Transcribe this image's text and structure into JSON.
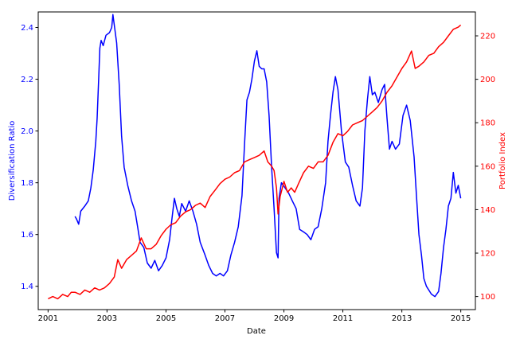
{
  "chart_data": {
    "type": "line",
    "xlabel": "Date",
    "ylabel_left": "Diversification Ratio",
    "ylabel_right": "Portfolio Index",
    "x_range": [
      "2000-09-01",
      "2015-07-01"
    ],
    "x_ticks": [
      "2001",
      "2003",
      "2005",
      "2007",
      "2009",
      "2011",
      "2013",
      "2015"
    ],
    "y_left_range": [
      1.31,
      2.46
    ],
    "y_left_ticks": [
      "1.4",
      "1.6",
      "1.8",
      "2.0",
      "2.2",
      "2.4"
    ],
    "y_right_range": [
      94,
      231
    ],
    "y_right_ticks": [
      "100",
      "120",
      "140",
      "160",
      "180",
      "200",
      "220"
    ],
    "series": [
      {
        "axis": "left",
        "color": "#0000ff",
        "points": [
          [
            "2001-12-01",
            1.67
          ],
          [
            "2001-12-20",
            1.66
          ],
          [
            "2002-01-15",
            1.64
          ],
          [
            "2002-02-10",
            1.69
          ],
          [
            "2002-04-01",
            1.71
          ],
          [
            "2002-05-15",
            1.73
          ],
          [
            "2002-06-15",
            1.78
          ],
          [
            "2002-07-15",
            1.85
          ],
          [
            "2002-08-15",
            1.96
          ],
          [
            "2002-09-01",
            2.05
          ],
          [
            "2002-09-20",
            2.2
          ],
          [
            "2002-10-05",
            2.32
          ],
          [
            "2002-10-20",
            2.35
          ],
          [
            "2002-11-15",
            2.33
          ],
          [
            "2002-12-20",
            2.37
          ],
          [
            "2003-02-01",
            2.38
          ],
          [
            "2003-03-01",
            2.4
          ],
          [
            "2003-03-15",
            2.45
          ],
          [
            "2003-04-01",
            2.41
          ],
          [
            "2003-05-01",
            2.34
          ],
          [
            "2003-06-01",
            2.18
          ],
          [
            "2003-07-01",
            1.98
          ],
          [
            "2003-08-01",
            1.86
          ],
          [
            "2003-09-15",
            1.79
          ],
          [
            "2003-11-01",
            1.73
          ],
          [
            "2003-12-15",
            1.69
          ],
          [
            "2004-01-15",
            1.63
          ],
          [
            "2004-02-15",
            1.57
          ],
          [
            "2004-04-01",
            1.55
          ],
          [
            "2004-05-15",
            1.49
          ],
          [
            "2004-07-01",
            1.47
          ],
          [
            "2004-08-15",
            1.5
          ],
          [
            "2004-10-01",
            1.46
          ],
          [
            "2004-11-15",
            1.48
          ],
          [
            "2005-01-01",
            1.51
          ],
          [
            "2005-02-15",
            1.58
          ],
          [
            "2005-03-15",
            1.66
          ],
          [
            "2005-04-15",
            1.74
          ],
          [
            "2005-05-15",
            1.7
          ],
          [
            "2005-06-15",
            1.67
          ],
          [
            "2005-07-15",
            1.72
          ],
          [
            "2005-09-01",
            1.69
          ],
          [
            "2005-10-15",
            1.73
          ],
          [
            "2005-12-01",
            1.69
          ],
          [
            "2006-01-15",
            1.64
          ],
          [
            "2006-03-01",
            1.57
          ],
          [
            "2006-05-01",
            1.52
          ],
          [
            "2006-06-15",
            1.48
          ],
          [
            "2006-08-01",
            1.45
          ],
          [
            "2006-09-15",
            1.44
          ],
          [
            "2006-11-01",
            1.45
          ],
          [
            "2006-12-15",
            1.44
          ],
          [
            "2007-02-01",
            1.46
          ],
          [
            "2007-03-15",
            1.52
          ],
          [
            "2007-05-01",
            1.57
          ],
          [
            "2007-06-15",
            1.63
          ],
          [
            "2007-08-01",
            1.75
          ],
          [
            "2007-09-01",
            1.95
          ],
          [
            "2007-10-01",
            2.12
          ],
          [
            "2007-11-01",
            2.15
          ],
          [
            "2007-12-01",
            2.2
          ],
          [
            "2008-01-01",
            2.27
          ],
          [
            "2008-02-01",
            2.31
          ],
          [
            "2008-03-01",
            2.25
          ],
          [
            "2008-04-01",
            2.24
          ],
          [
            "2008-05-01",
            2.24
          ],
          [
            "2008-06-01",
            2.19
          ],
          [
            "2008-07-01",
            2.06
          ],
          [
            "2008-08-01",
            1.86
          ],
          [
            "2008-09-01",
            1.7
          ],
          [
            "2008-10-01",
            1.53
          ],
          [
            "2008-10-20",
            1.51
          ],
          [
            "2008-11-01",
            1.74
          ],
          [
            "2008-12-01",
            1.8
          ],
          [
            "2009-01-15",
            1.78
          ],
          [
            "2009-03-01",
            1.76
          ],
          [
            "2009-04-15",
            1.73
          ],
          [
            "2009-06-01",
            1.7
          ],
          [
            "2009-07-15",
            1.62
          ],
          [
            "2009-09-01",
            1.61
          ],
          [
            "2009-10-15",
            1.6
          ],
          [
            "2009-12-01",
            1.58
          ],
          [
            "2010-01-15",
            1.62
          ],
          [
            "2010-03-01",
            1.63
          ],
          [
            "2010-04-15",
            1.7
          ],
          [
            "2010-06-01",
            1.8
          ],
          [
            "2010-07-01",
            1.96
          ],
          [
            "2010-08-01",
            2.06
          ],
          [
            "2010-09-01",
            2.15
          ],
          [
            "2010-10-01",
            2.21
          ],
          [
            "2010-11-01",
            2.16
          ],
          [
            "2010-12-15",
            2.0
          ],
          [
            "2011-02-01",
            1.88
          ],
          [
            "2011-03-15",
            1.86
          ],
          [
            "2011-05-01",
            1.79
          ],
          [
            "2011-06-15",
            1.73
          ],
          [
            "2011-08-01",
            1.71
          ],
          [
            "2011-09-01",
            1.78
          ],
          [
            "2011-10-01",
            2.0
          ],
          [
            "2011-11-01",
            2.12
          ],
          [
            "2011-12-01",
            2.21
          ],
          [
            "2012-01-01",
            2.14
          ],
          [
            "2012-02-01",
            2.15
          ],
          [
            "2012-03-15",
            2.11
          ],
          [
            "2012-05-01",
            2.16
          ],
          [
            "2012-06-01",
            2.18
          ],
          [
            "2012-07-01",
            2.05
          ],
          [
            "2012-08-01",
            1.93
          ],
          [
            "2012-09-01",
            1.96
          ],
          [
            "2012-10-15",
            1.93
          ],
          [
            "2012-12-01",
            1.95
          ],
          [
            "2013-01-15",
            2.06
          ],
          [
            "2013-03-01",
            2.1
          ],
          [
            "2013-04-15",
            2.04
          ],
          [
            "2013-06-01",
            1.9
          ],
          [
            "2013-07-01",
            1.75
          ],
          [
            "2013-08-01",
            1.6
          ],
          [
            "2013-09-01",
            1.52
          ],
          [
            "2013-10-01",
            1.43
          ],
          [
            "2013-11-01",
            1.4
          ],
          [
            "2014-01-01",
            1.37
          ],
          [
            "2014-02-15",
            1.36
          ],
          [
            "2014-04-01",
            1.38
          ],
          [
            "2014-05-01",
            1.45
          ],
          [
            "2014-06-01",
            1.55
          ],
          [
            "2014-07-01",
            1.62
          ],
          [
            "2014-08-01",
            1.71
          ],
          [
            "2014-09-01",
            1.74
          ],
          [
            "2014-10-01",
            1.84
          ],
          [
            "2014-11-01",
            1.76
          ],
          [
            "2014-12-01",
            1.79
          ],
          [
            "2014-12-31",
            1.74
          ]
        ]
      },
      {
        "axis": "right",
        "color": "#ff0000",
        "points": [
          [
            "2001-01-01",
            99
          ],
          [
            "2001-03-01",
            100
          ],
          [
            "2001-05-01",
            99
          ],
          [
            "2001-07-01",
            101
          ],
          [
            "2001-09-01",
            100
          ],
          [
            "2001-10-15",
            102
          ],
          [
            "2001-12-01",
            102
          ],
          [
            "2002-02-01",
            101
          ],
          [
            "2002-04-01",
            103
          ],
          [
            "2002-06-01",
            102
          ],
          [
            "2002-08-01",
            104
          ],
          [
            "2002-10-01",
            103
          ],
          [
            "2002-12-01",
            104
          ],
          [
            "2003-02-01",
            106
          ],
          [
            "2003-04-01",
            109
          ],
          [
            "2003-05-15",
            117
          ],
          [
            "2003-07-01",
            113
          ],
          [
            "2003-09-01",
            117
          ],
          [
            "2003-11-01",
            119
          ],
          [
            "2004-01-01",
            121
          ],
          [
            "2004-03-01",
            127
          ],
          [
            "2004-05-01",
            122
          ],
          [
            "2004-07-01",
            122
          ],
          [
            "2004-09-01",
            124
          ],
          [
            "2004-11-01",
            128
          ],
          [
            "2005-01-01",
            131
          ],
          [
            "2005-03-01",
            133
          ],
          [
            "2005-05-01",
            134
          ],
          [
            "2005-07-01",
            137
          ],
          [
            "2005-09-01",
            139
          ],
          [
            "2005-11-01",
            140
          ],
          [
            "2006-01-01",
            142
          ],
          [
            "2006-03-01",
            143
          ],
          [
            "2006-05-01",
            141
          ],
          [
            "2006-07-01",
            146
          ],
          [
            "2006-09-01",
            149
          ],
          [
            "2006-11-01",
            152
          ],
          [
            "2007-01-01",
            154
          ],
          [
            "2007-03-01",
            155
          ],
          [
            "2007-05-01",
            157
          ],
          [
            "2007-07-01",
            158
          ],
          [
            "2007-09-01",
            162
          ],
          [
            "2007-11-01",
            163
          ],
          [
            "2008-01-01",
            164
          ],
          [
            "2008-03-01",
            165
          ],
          [
            "2008-05-01",
            167
          ],
          [
            "2008-06-15",
            162
          ],
          [
            "2008-08-01",
            160
          ],
          [
            "2008-09-01",
            158
          ],
          [
            "2008-10-01",
            150
          ],
          [
            "2008-10-20",
            138
          ],
          [
            "2008-11-15",
            146
          ],
          [
            "2009-01-01",
            153
          ],
          [
            "2009-02-15",
            148
          ],
          [
            "2009-04-01",
            150
          ],
          [
            "2009-05-15",
            148
          ],
          [
            "2009-07-01",
            152
          ],
          [
            "2009-09-01",
            157
          ],
          [
            "2009-11-01",
            160
          ],
          [
            "2010-01-01",
            159
          ],
          [
            "2010-03-01",
            162
          ],
          [
            "2010-05-01",
            162
          ],
          [
            "2010-07-01",
            165
          ],
          [
            "2010-09-01",
            171
          ],
          [
            "2010-11-01",
            175
          ],
          [
            "2011-01-01",
            174
          ],
          [
            "2011-03-01",
            176
          ],
          [
            "2011-05-01",
            179
          ],
          [
            "2011-07-01",
            180
          ],
          [
            "2011-09-01",
            181
          ],
          [
            "2011-11-01",
            183
          ],
          [
            "2012-01-01",
            185
          ],
          [
            "2012-03-01",
            187
          ],
          [
            "2012-05-01",
            190
          ],
          [
            "2012-07-01",
            194
          ],
          [
            "2012-09-01",
            197
          ],
          [
            "2012-11-01",
            201
          ],
          [
            "2013-01-01",
            205
          ],
          [
            "2013-03-01",
            208
          ],
          [
            "2013-05-01",
            213
          ],
          [
            "2013-06-15",
            205
          ],
          [
            "2013-08-01",
            206
          ],
          [
            "2013-10-01",
            208
          ],
          [
            "2013-12-01",
            211
          ],
          [
            "2014-02-01",
            212
          ],
          [
            "2014-04-01",
            215
          ],
          [
            "2014-06-01",
            217
          ],
          [
            "2014-08-01",
            220
          ],
          [
            "2014-10-01",
            223
          ],
          [
            "2014-12-01",
            224
          ],
          [
            "2014-12-31",
            225
          ]
        ]
      }
    ]
  }
}
